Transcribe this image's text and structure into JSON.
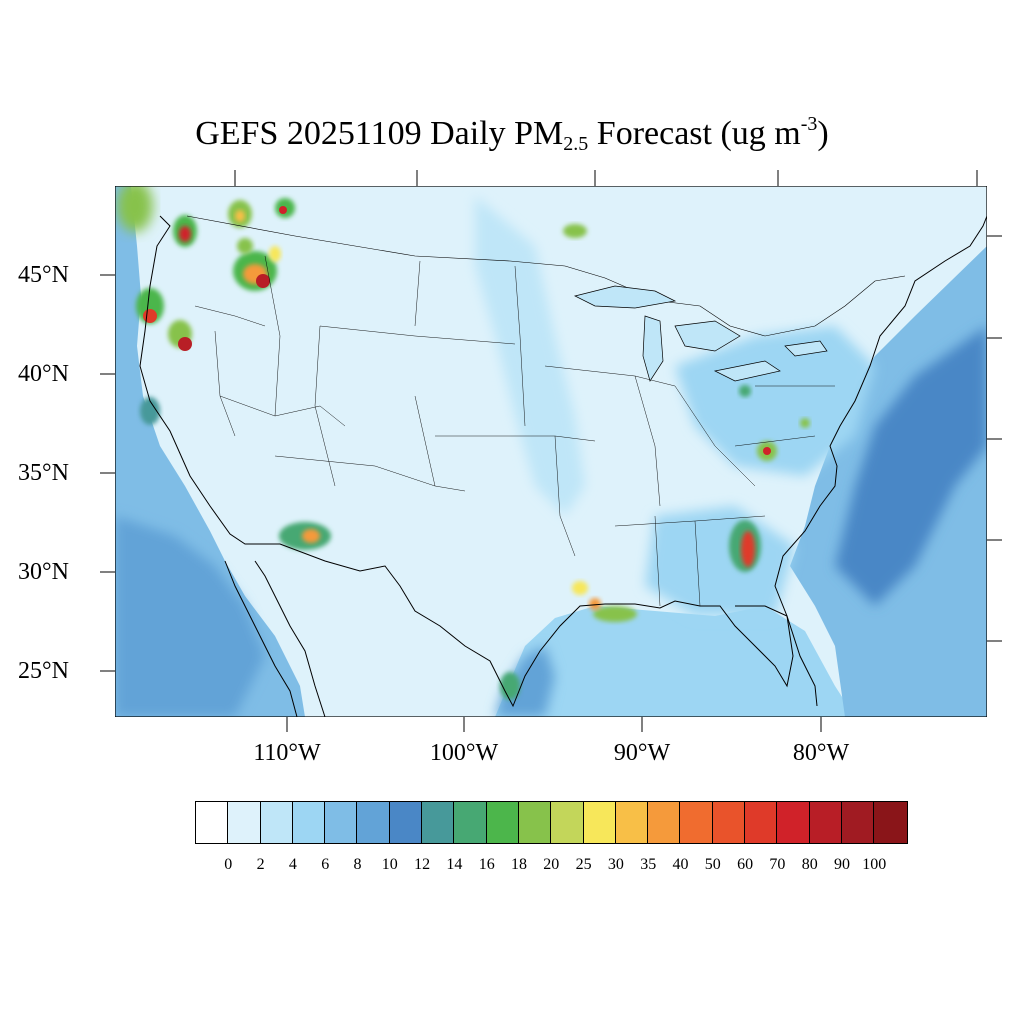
{
  "title": {
    "main": "GEFS 20251109 Daily PM",
    "subscript": "2.5",
    "rest": " Forecast (ug m",
    "superscript": "-3",
    "close": ")"
  },
  "axes": {
    "lat_labels": [
      "45°N",
      "40°N",
      "35°N",
      "30°N",
      "25°N"
    ],
    "lon_labels": [
      "110°W",
      "100°W",
      "90°W",
      "80°W"
    ]
  },
  "colorbar": {
    "levels": [
      "0",
      "2",
      "4",
      "6",
      "8",
      "10",
      "12",
      "14",
      "16",
      "18",
      "20",
      "25",
      "30",
      "35",
      "40",
      "50",
      "60",
      "70",
      "80",
      "90",
      "100"
    ],
    "colors": [
      "#ffffff",
      "#def2fb",
      "#bfe6f8",
      "#9dd6f3",
      "#7fbde6",
      "#62a3d7",
      "#4a87c6",
      "#47999a",
      "#47a873",
      "#4cb64b",
      "#87c24b",
      "#c3d65a",
      "#f7e75a",
      "#f8bf47",
      "#f59a3b",
      "#f06c2f",
      "#e9532b",
      "#df3a29",
      "#d02229",
      "#b81e26",
      "#a01b22",
      "#8a1519"
    ]
  },
  "map_colors": {
    "background": "#def2fb",
    "ocean": "#62a3d7",
    "coast_line": "#000000"
  }
}
